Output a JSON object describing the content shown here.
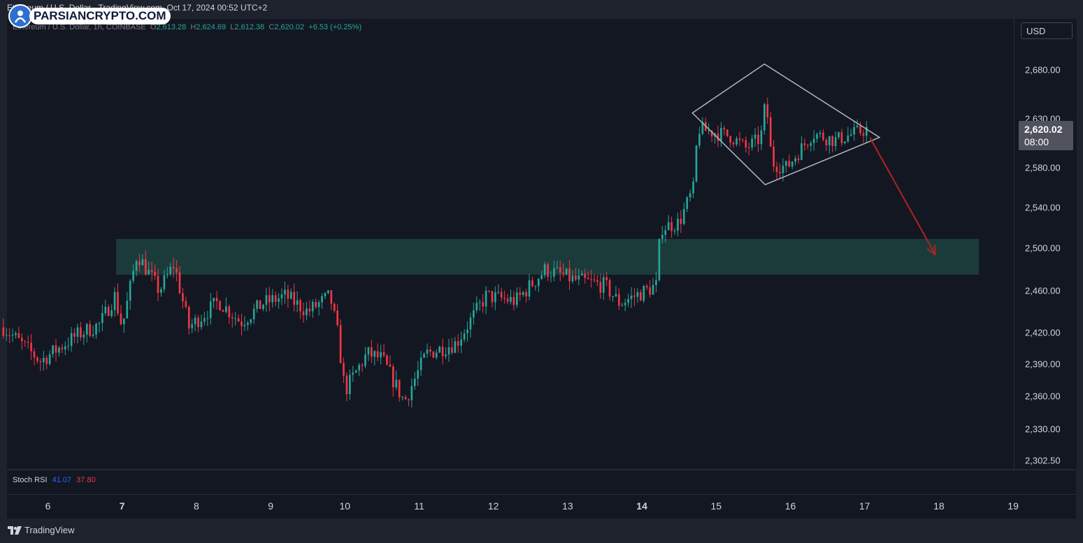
{
  "header": {
    "source_text": "Ethereum / U.S. Dollar · TradingView.com, Oct 17, 2024 00:52 UTC+2"
  },
  "watermark": {
    "brand": "PARSIANCRYPTO.COM"
  },
  "legend": {
    "symbol": "Ethereum / U.S. Dollar, 1h, COINBASE",
    "o_label": "O",
    "o": "2,613.28",
    "h_label": "H",
    "h": "2,624.69",
    "l_label": "L",
    "l": "2,612.38",
    "c_label": "C",
    "c": "2,620.02",
    "change": "+6.53 (+0.25%)"
  },
  "currency": "USD",
  "last_price": {
    "price": "2,620.02",
    "countdown": "08:00"
  },
  "indicator": {
    "name": "Stoch RSI",
    "k": "41.07",
    "d": "37.80"
  },
  "footer": {
    "brand": "TradingView"
  },
  "colors": {
    "up": "#26a69a",
    "down": "#f23645",
    "zone": "#1b3d3c",
    "pattern": "#b2b5be",
    "arrow": "#b22222"
  },
  "chart_data": {
    "type": "candlestick",
    "title": "Ethereum / U.S. Dollar",
    "interval": "1h",
    "exchange": "COINBASE",
    "price_ticks": [
      {
        "value": 2680,
        "label": "2,680.00"
      },
      {
        "value": 2630,
        "label": "2,630.00"
      },
      {
        "value": 2580,
        "label": "2,580.00"
      },
      {
        "value": 2540,
        "label": "2,540.00"
      },
      {
        "value": 2500,
        "label": "2,500.00"
      },
      {
        "value": 2460,
        "label": "2,460.00"
      },
      {
        "value": 2420,
        "label": "2,420.00"
      },
      {
        "value": 2390,
        "label": "2,390.00"
      },
      {
        "value": 2360,
        "label": "2,360.00"
      },
      {
        "value": 2330,
        "label": "2,330.00"
      },
      {
        "value": 2302.5,
        "label": "2,302.50"
      }
    ],
    "time_ticks": [
      {
        "day": 6,
        "label": "6",
        "bold": false
      },
      {
        "day": 7,
        "label": "7",
        "bold": true
      },
      {
        "day": 8,
        "label": "8",
        "bold": false
      },
      {
        "day": 9,
        "label": "9",
        "bold": false
      },
      {
        "day": 10,
        "label": "10",
        "bold": false
      },
      {
        "day": 11,
        "label": "11",
        "bold": false
      },
      {
        "day": 12,
        "label": "12",
        "bold": false
      },
      {
        "day": 13,
        "label": "13",
        "bold": false
      },
      {
        "day": 14,
        "label": "14",
        "bold": true
      },
      {
        "day": 15,
        "label": "15",
        "bold": false
      },
      {
        "day": 16,
        "label": "16",
        "bold": false
      },
      {
        "day": 17,
        "label": "17",
        "bold": false
      },
      {
        "day": 18,
        "label": "18",
        "bold": false
      },
      {
        "day": 19,
        "label": "19",
        "bold": false
      }
    ],
    "ylim": [
      2302.5,
      2690
    ],
    "support_zone": {
      "low": 2475,
      "high": 2509,
      "day_start": 6.92,
      "day_end": 18.54
    },
    "diamond_pattern": [
      {
        "day": 14.68,
        "price": 2636
      },
      {
        "day": 15.65,
        "price": 2686
      },
      {
        "day": 17.2,
        "price": 2611
      },
      {
        "day": 15.66,
        "price": 2563
      }
    ],
    "projection_arrow": {
      "from": {
        "day": 17.07,
        "price": 2611
      },
      "to": {
        "day": 17.95,
        "price": 2494
      }
    },
    "anchors": [
      {
        "day": 5.4,
        "price": 2425
      },
      {
        "day": 5.9,
        "price": 2393
      },
      {
        "day": 6.4,
        "price": 2418
      },
      {
        "day": 6.7,
        "price": 2428
      },
      {
        "day": 6.9,
        "price": 2455
      },
      {
        "day": 7.0,
        "price": 2425
      },
      {
        "day": 7.2,
        "price": 2495
      },
      {
        "day": 7.5,
        "price": 2460
      },
      {
        "day": 7.7,
        "price": 2485
      },
      {
        "day": 7.9,
        "price": 2425
      },
      {
        "day": 8.3,
        "price": 2450
      },
      {
        "day": 8.6,
        "price": 2430
      },
      {
        "day": 8.9,
        "price": 2448
      },
      {
        "day": 9.2,
        "price": 2455
      },
      {
        "day": 9.5,
        "price": 2440
      },
      {
        "day": 9.8,
        "price": 2455
      },
      {
        "day": 9.9,
        "price": 2420
      },
      {
        "day": 10.0,
        "price": 2365
      },
      {
        "day": 10.3,
        "price": 2400
      },
      {
        "day": 10.5,
        "price": 2395
      },
      {
        "day": 10.8,
        "price": 2355
      },
      {
        "day": 11.1,
        "price": 2400
      },
      {
        "day": 11.5,
        "price": 2410
      },
      {
        "day": 11.9,
        "price": 2455
      },
      {
        "day": 12.3,
        "price": 2450
      },
      {
        "day": 12.7,
        "price": 2480
      },
      {
        "day": 13.1,
        "price": 2470
      },
      {
        "day": 13.5,
        "price": 2465
      },
      {
        "day": 13.7,
        "price": 2448
      },
      {
        "day": 14.2,
        "price": 2465
      },
      {
        "day": 14.25,
        "price": 2520
      },
      {
        "day": 14.5,
        "price": 2525
      },
      {
        "day": 14.7,
        "price": 2560
      },
      {
        "day": 14.75,
        "price": 2620
      },
      {
        "day": 15.2,
        "price": 2612
      },
      {
        "day": 15.4,
        "price": 2600
      },
      {
        "day": 15.6,
        "price": 2610
      },
      {
        "day": 15.67,
        "price": 2650
      },
      {
        "day": 15.75,
        "price": 2585
      },
      {
        "day": 15.95,
        "price": 2580
      },
      {
        "day": 16.3,
        "price": 2615
      },
      {
        "day": 16.6,
        "price": 2608
      },
      {
        "day": 16.9,
        "price": 2616
      },
      {
        "day": 17.05,
        "price": 2620
      }
    ],
    "candle_start_day": 5.4,
    "candle_end_day": 17.05,
    "candle_interval_hours": 1
  }
}
